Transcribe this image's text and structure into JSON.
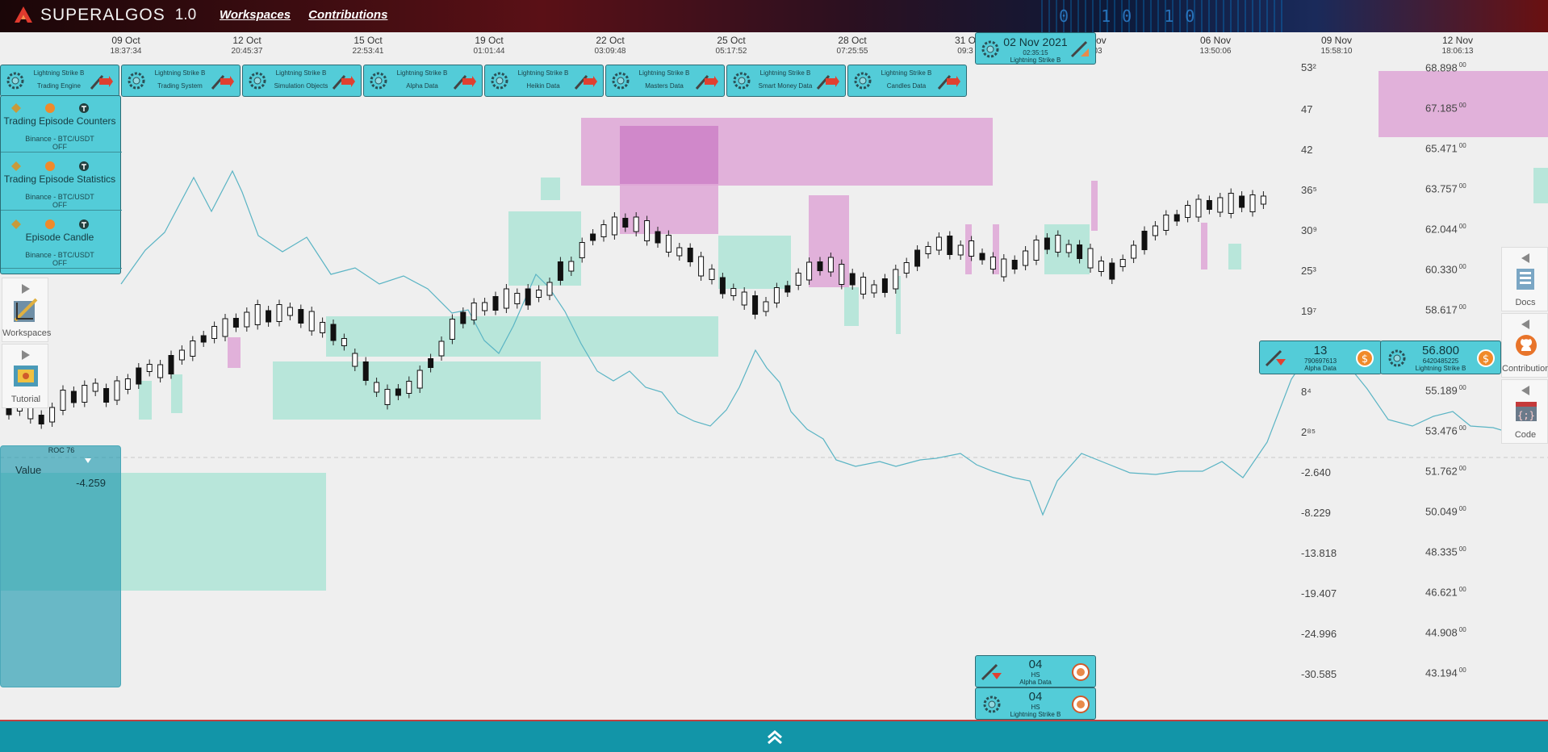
{
  "app": {
    "name": "SUPERALGOS",
    "version": "1.0",
    "binary_text": "0 10 10"
  },
  "top_nav": {
    "workspaces": "Workspaces",
    "contributions": "Contributions"
  },
  "dates": [
    {
      "day": "09 Oct",
      "time": "18:37:34"
    },
    {
      "day": "12 Oct",
      "time": "20:45:37"
    },
    {
      "day": "15 Oct",
      "time": "22:53:41"
    },
    {
      "day": "19 Oct",
      "time": "01:01:44"
    },
    {
      "day": "22 Oct",
      "time": "03:09:48"
    },
    {
      "day": "25 Oct",
      "time": "05:17:52"
    },
    {
      "day": "28 Oct",
      "time": "07:25:55"
    },
    {
      "day": "31 O",
      "time": "09:3"
    },
    {
      "day": "Nov",
      "time": "03"
    },
    {
      "day": "06 Nov",
      "time": "13:50:06"
    },
    {
      "day": "09 Nov",
      "time": "15:58:10"
    },
    {
      "day": "12 Nov",
      "time": "18:06:13"
    }
  ],
  "date_marker": {
    "day": "02 Nov 2021",
    "time": "02:35:15",
    "label": "Lightning Strike B"
  },
  "layers": [
    {
      "line1": "Lightning Strike B",
      "line2": "Trading Engine"
    },
    {
      "line1": "Lightning Strike B",
      "line2": "Trading System"
    },
    {
      "line1": "Lightning Strike B",
      "line2": "Simulation Objects"
    },
    {
      "line1": "Lightning Strike B",
      "line2": "Alpha Data"
    },
    {
      "line1": "Lightning Strike B",
      "line2": "Heikin Data"
    },
    {
      "line1": "Lightning Strike B",
      "line2": "Masters Data"
    },
    {
      "line1": "Lightning Strike B",
      "line2": "Smart Money Data"
    },
    {
      "line1": "Lightning Strike B",
      "line2": "Candles Data"
    }
  ],
  "left_panels": [
    {
      "title": "Trading Episode Counters",
      "sub1": "Binance - BTC/USDT",
      "sub2": "OFF"
    },
    {
      "title": "Trading Episode Statistics",
      "sub1": "Binance - BTC/USDT",
      "sub2": "OFF"
    },
    {
      "title": "Episode Candle",
      "sub1": "Binance - BTC/USDT",
      "sub2": "OFF"
    }
  ],
  "side_tools": {
    "workspaces": "Workspaces",
    "tutorial": "Tutorial"
  },
  "value_panel": {
    "header": "ROC 76",
    "label": "Value",
    "value": "-4.259"
  },
  "left_axis": [
    "53²",
    "47",
    "42",
    "36⁵",
    "30⁹",
    "25³",
    "19⁷",
    "8⁴",
    "2⁸⁵",
    "-2.640",
    "-8.229",
    "-13.818",
    "-19.407",
    "-24.996",
    "-30.585"
  ],
  "right_axis": [
    "68.898",
    "67.185",
    "65.471",
    "63.757",
    "62.044",
    "60.330",
    "58.617",
    "55.189",
    "53.476",
    "51.762",
    "50.049",
    "48.335",
    "46.621",
    "44.908",
    "43.194"
  ],
  "right_axis_suffix": "00",
  "chips": {
    "alpha_top": {
      "big": "13",
      "mid1": "790697613",
      "mid2": "Alpha Data"
    },
    "ls_top": {
      "big": "56.800",
      "mid1": "6420485225",
      "mid2": "Lightning Strike B"
    },
    "alpha_bottom": {
      "big": "04",
      "mid1": "HS",
      "mid2": "Alpha Data"
    },
    "ls_bottom": {
      "big": "04",
      "mid1": "HS",
      "mid2": "Lightning Strike B"
    }
  },
  "right_tools": {
    "docs": "Docs",
    "contributions": "Contributions",
    "code": "Code"
  },
  "colors": {
    "panel": "#53ccd8",
    "panel_border": "#2b6b74",
    "bull_zone": "#b8e6da",
    "bear_zone": "#dea6d6",
    "roc_line": "#5ab4c4",
    "bottom_bar": "#1295a8"
  }
}
